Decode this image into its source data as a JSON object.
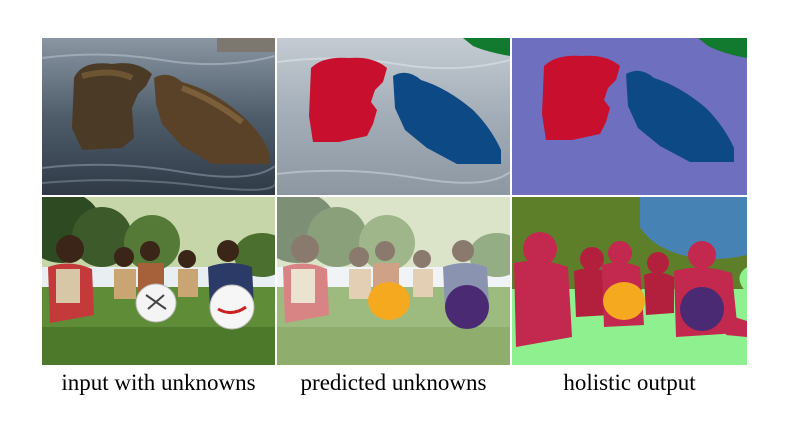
{
  "captions": {
    "input": "input with unknowns",
    "predicted": "predicted unknowns",
    "holistic": "holistic output"
  },
  "colors": {
    "bear_left": "#c8102e",
    "bear_right": "#0d4a85",
    "water": "#6f6fc0",
    "tree": "#127a2e",
    "frisbee_left": "#f5a91f",
    "frisbee_right": "#4a2a72",
    "person": "#c3284f",
    "grass": "#8ef08e",
    "vegetation": "#5e7f2a",
    "sky": "#4682b4",
    "person_dark": "#b3203e"
  }
}
